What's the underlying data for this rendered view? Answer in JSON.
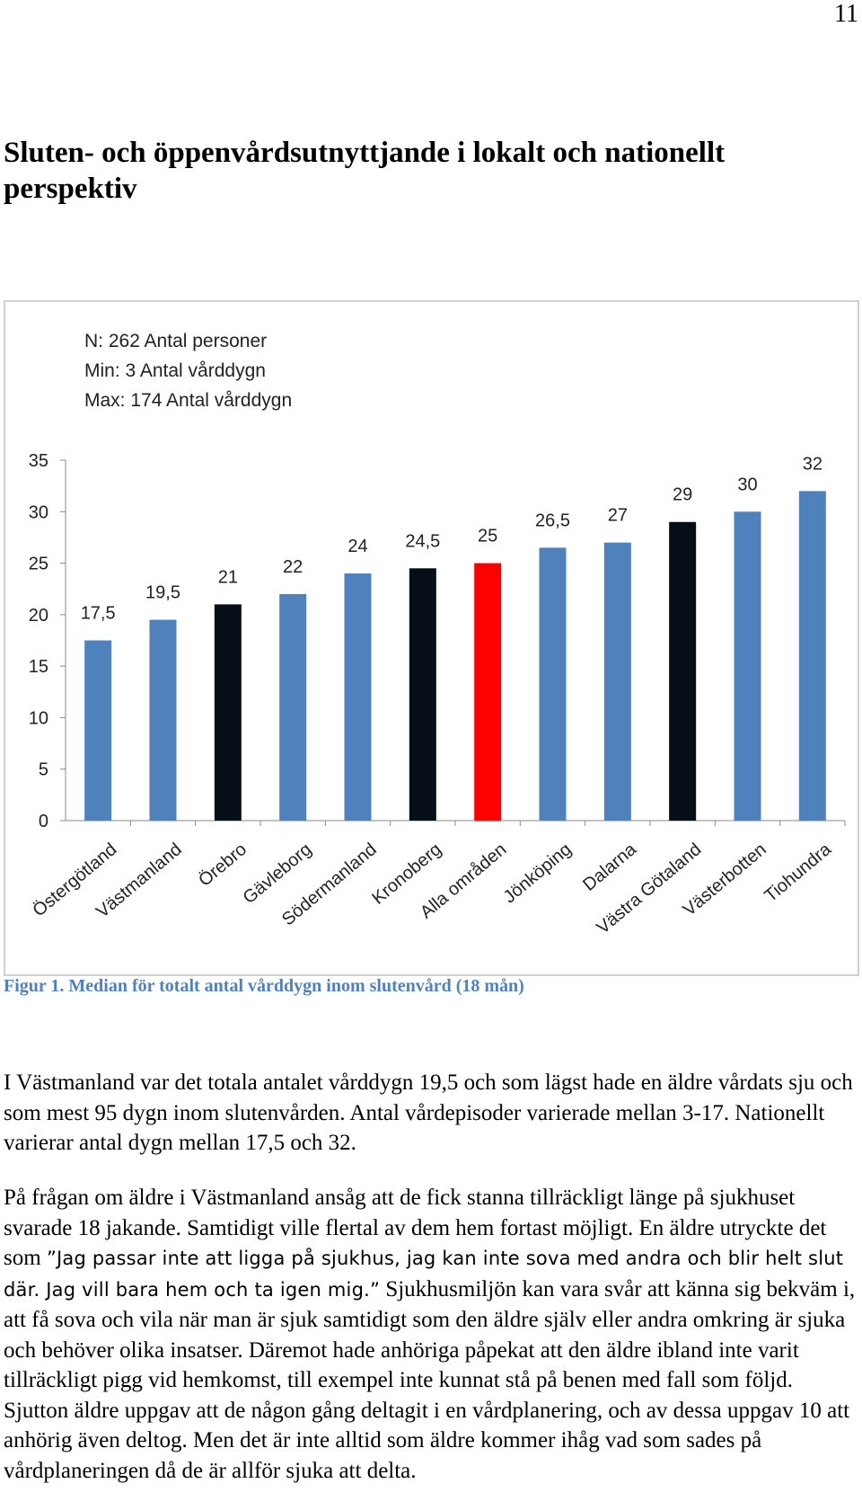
{
  "page_number": "11",
  "heading": "Sluten- och öppenvårdsutnyttjande i lokalt och nationellt perspektiv",
  "figure_caption": "Figur 1. Median för totalt antal vårddygn inom slutenvård (18 mån)",
  "colors": {
    "bar_default": "#4f81bd",
    "bar_highlight_dark": "#060e17",
    "bar_highlight_red": "#ff0000",
    "caption": "#4f81bd"
  },
  "chart_data": {
    "type": "bar",
    "annotation": [
      "N: 262 Antal personer",
      "Min: 3 Antal vårddygn",
      "Max: 174 Antal vårddygn"
    ],
    "categories": [
      "Östergötland",
      "Västmanland",
      "Örebro",
      "Gävleborg",
      "Södermanland",
      "Kronoberg",
      "Alla områden",
      "Jönköping",
      "Dalarna",
      "Västra Götaland",
      "Västerbotten",
      "Tiohundra"
    ],
    "values": [
      17.5,
      19.5,
      21,
      22,
      24,
      24.5,
      25,
      26.5,
      27,
      29,
      30,
      32
    ],
    "value_labels": [
      "17,5",
      "19,5",
      "21",
      "22",
      "24",
      "24,5",
      "25",
      "26,5",
      "27",
      "29",
      "30",
      "32"
    ],
    "bar_colors": [
      "#4f81bd",
      "#4f81bd",
      "#060e17",
      "#4f81bd",
      "#4f81bd",
      "#060e17",
      "#ff0000",
      "#4f81bd",
      "#4f81bd",
      "#060e17",
      "#4f81bd",
      "#4f81bd"
    ],
    "yticks": [
      "0",
      "5",
      "10",
      "15",
      "20",
      "25",
      "30",
      "35"
    ],
    "ylim": [
      0,
      35
    ],
    "grid": false
  },
  "paragraphs": {
    "p1": "I Västmanland var det totala antalet vårddygn 19,5 och som lägst hade en äldre vårdats sju och som mest 95 dygn inom slutenvården. Antal vårdepisoder varierade mellan 3-17. Nationellt varierar antal dygn mellan 17,5 och 32.",
    "p2_before": "På frågan om äldre i Västmanland ansåg att de fick stanna tillräckligt länge på sjukhuset svarade 18 jakande. Samtidigt ville flertal av dem hem fortast möjligt. En äldre utryckte det som ",
    "p2_quote": "”Jag passar inte att ligga på sjukhus, jag kan inte sova med andra och blir helt slut där. Jag vill bara hem och ta igen mig.”",
    "p2_after": " Sjukhusmiljön kan vara svår att känna sig bekväm i, att få sova och vila när man är sjuk samtidigt som den äldre själv eller andra omkring är sjuka och behöver olika insatser. Däremot hade anhöriga påpekat att den äldre ibland inte varit tillräckligt pigg vid hemkomst, till exempel inte kunnat stå på benen med fall som följd. Sjutton äldre uppgav att de någon gång deltagit i en vårdplanering, och av dessa uppgav 10 att anhörig även deltog. Men det är inte alltid som äldre kommer ihåg vad som sades på vårdplaneringen då de är allför sjuka att delta."
  }
}
